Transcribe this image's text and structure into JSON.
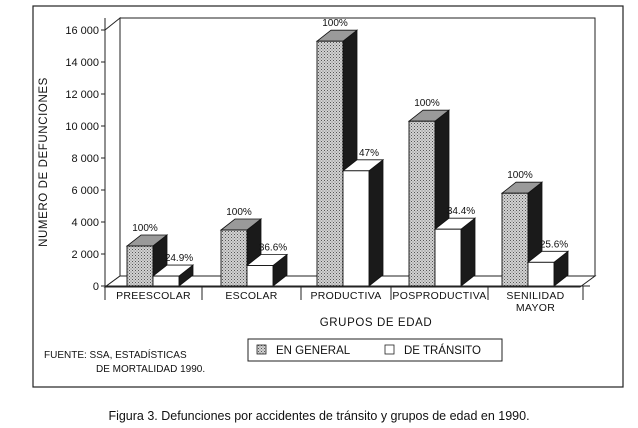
{
  "chart_data": {
    "type": "bar",
    "ylabel": "NUMERO DE DEFUNCIONES",
    "xlabel": "GRUPOS DE EDAD",
    "ylim": [
      0,
      16000
    ],
    "yticks": [
      0,
      2000,
      4000,
      6000,
      8000,
      10000,
      12000,
      14000,
      16000
    ],
    "ytick_labels": [
      "0",
      "2 000",
      "4 000",
      "6 000",
      "8 000",
      "10 000",
      "12 000",
      "14 000",
      "16 000"
    ],
    "categories": [
      {
        "lines": [
          "PREESCOLAR"
        ]
      },
      {
        "lines": [
          "ESCOLAR"
        ]
      },
      {
        "lines": [
          "PRODUCTIVA"
        ]
      },
      {
        "lines": [
          "POSPRODUCTIVA"
        ]
      },
      {
        "lines": [
          "SENILIDAD",
          "MAYOR"
        ]
      }
    ],
    "series": [
      {
        "name": "EN GENERAL",
        "values": [
          2500,
          3500,
          15300,
          10300,
          5800
        ],
        "labels": [
          "100%",
          "100%",
          "100%",
          "100%",
          "100%"
        ],
        "fill": "dotted-gray"
      },
      {
        "name": "DE TRÁNSITO",
        "values": [
          620,
          1280,
          7200,
          3550,
          1480
        ],
        "labels": [
          "24.9%",
          "36.6%",
          "47%",
          "34.4%",
          "25.6%"
        ],
        "fill": "white"
      }
    ],
    "legend_placement": "bottom",
    "grid": false
  },
  "source": {
    "line1": "FUENTE: SSA, ESTADÍSTICAS",
    "line2": "DE MORTALIDAD 1990."
  },
  "caption": "Figura 3. Defunciones por accidentes de tránsito y grupos de edad en 1990."
}
